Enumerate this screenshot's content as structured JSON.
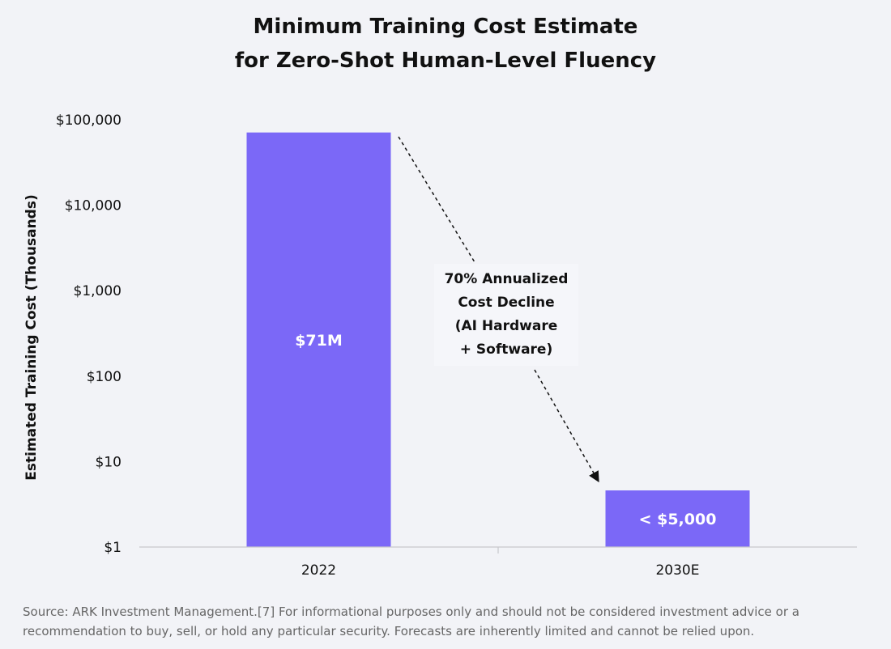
{
  "chart_data": {
    "type": "bar",
    "title": "Minimum Training Cost Estimate",
    "subtitle": "for Zero-Shot Human-Level Fluency",
    "ylabel": "Estimated Training Cost (Thousands)",
    "xlabel": "",
    "y_scale": "log",
    "ylim": [
      1,
      100000
    ],
    "y_ticks": [
      1,
      10,
      100,
      1000,
      10000,
      100000
    ],
    "y_tick_labels": [
      "$1",
      "$10",
      "$100",
      "$1,000",
      "$10,000",
      "$100,000"
    ],
    "categories": [
      "2022",
      "2030E"
    ],
    "values": [
      71000,
      4.6
    ],
    "data_labels": [
      "$71M",
      "< $5,000"
    ],
    "bar_color": "#7b68f7",
    "grid": false,
    "annotation": {
      "lines": [
        "70% Annualized",
        "Cost Decline",
        "(AI Hardware",
        "+ Software)"
      ]
    }
  },
  "footnote": {
    "line1": "Source: ARK Investment Management.[7] For informational purposes only and should not be considered investment advice or a",
    "line2": "recommendation to buy, sell, or hold any particular security. Forecasts are inherently limited and cannot be relied upon."
  }
}
